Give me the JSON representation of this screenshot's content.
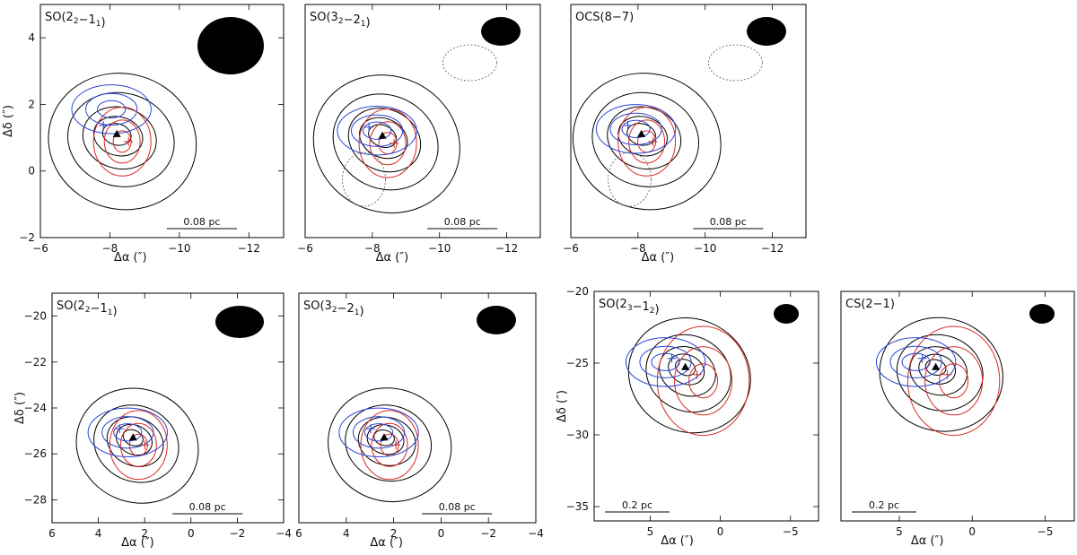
{
  "chart_data": [
    {
      "type": "contour",
      "title": "SO(2<sub>2</sub>−1<sub>1</sub>)",
      "title_main": "SO(2",
      "title_sub1": "2",
      "title_mid": "−1",
      "title_sub2": "1",
      "title_end": ")",
      "xlabel": "Δα (″)",
      "ylabel": "Δδ (″)",
      "xlim": [
        -6,
        -13
      ],
      "ylim": [
        -2,
        5
      ],
      "xticks": [
        -6,
        -8,
        -10,
        -12
      ],
      "yticks": [
        -2,
        0,
        2,
        4
      ],
      "scalebar": "0.08 pc",
      "source": [
        -8.2,
        1.1
      ],
      "blue_peak": [
        -8.0,
        2.15
      ],
      "red_peaks": [
        [
          -8.5,
          0.8
        ],
        [
          -8.6,
          0.5
        ]
      ],
      "contour_colors": {
        "black": "#000000",
        "blue": "#1f3fd0",
        "red": "#d0281f",
        "gray": "#555555"
      }
    },
    {
      "type": "contour",
      "title_main": "SO(3",
      "title_sub1": "2",
      "title_mid": "−2",
      "title_sub2": "1",
      "title_end": ")",
      "xlabel": "Δα (″)",
      "ylabel": "",
      "xlim": [
        -6,
        -13
      ],
      "ylim": [
        -2,
        5
      ],
      "xticks": [
        -6,
        -8,
        -10,
        -12
      ],
      "yticks": [],
      "scalebar": "0.08 pc",
      "source": [
        -8.3,
        1.05
      ]
    },
    {
      "type": "contour",
      "title_main": "OCS(8−7)",
      "title_sub1": "",
      "title_mid": "",
      "title_sub2": "",
      "title_end": "",
      "xlabel": "Δα (″)",
      "ylabel": "",
      "xlim": [
        -6,
        -13
      ],
      "ylim": [
        -2,
        5
      ],
      "xticks": [
        -6,
        -8,
        -10,
        -12
      ],
      "yticks": [],
      "scalebar": "0.08 pc",
      "source": [
        -8.1,
        1.1
      ]
    },
    {
      "type": "contour",
      "title_main": "SO(2",
      "title_sub1": "2",
      "title_mid": "−1",
      "title_sub2": "1",
      "title_end": ")",
      "xlabel": "Δα (″)",
      "ylabel": "Δδ (″)",
      "xlim": [
        6,
        -4
      ],
      "ylim": [
        -29,
        -19
      ],
      "xticks": [
        6,
        4,
        2,
        0,
        -2,
        -4
      ],
      "yticks": [
        -28,
        -26,
        -24,
        -22,
        -20
      ],
      "scalebar": "0.08 pc",
      "source": [
        2.5,
        -25.3
      ]
    },
    {
      "type": "contour",
      "title_main": "SO(3",
      "title_sub1": "2",
      "title_mid": "−2",
      "title_sub2": "1",
      "title_end": ")",
      "xlabel": "Δα (″)",
      "ylabel": "",
      "xlim": [
        6,
        -4
      ],
      "ylim": [
        -29,
        -19
      ],
      "xticks": [
        6,
        4,
        2,
        0,
        -2,
        -4
      ],
      "yticks": [],
      "scalebar": "0.08 pc",
      "source": [
        2.4,
        -25.3
      ]
    },
    {
      "type": "contour",
      "title_main": "SO(2",
      "title_sub1": "3",
      "title_mid": "−1",
      "title_sub2": "2",
      "title_end": ")",
      "xlabel": "Δα (″)",
      "ylabel": "Δδ (″)",
      "xlim": [
        9,
        -7
      ],
      "ylim": [
        -36,
        -20
      ],
      "xticks": [
        5,
        0,
        -5
      ],
      "yticks": [
        -35,
        -30,
        -25,
        -20
      ],
      "scalebar": "0.2 pc",
      "source": [
        2.5,
        -25.3
      ]
    },
    {
      "type": "contour",
      "title_main": "CS(2−1)",
      "title_sub1": "",
      "title_mid": "",
      "title_sub2": "",
      "title_end": "",
      "xlabel": "Δα (″)",
      "ylabel": "",
      "xlim": [
        9,
        -7
      ],
      "ylim": [
        -36,
        -20
      ],
      "xticks": [
        5,
        0,
        -5
      ],
      "yticks": [],
      "scalebar": "0.2 pc",
      "source": [
        2.5,
        -25.3
      ]
    }
  ]
}
